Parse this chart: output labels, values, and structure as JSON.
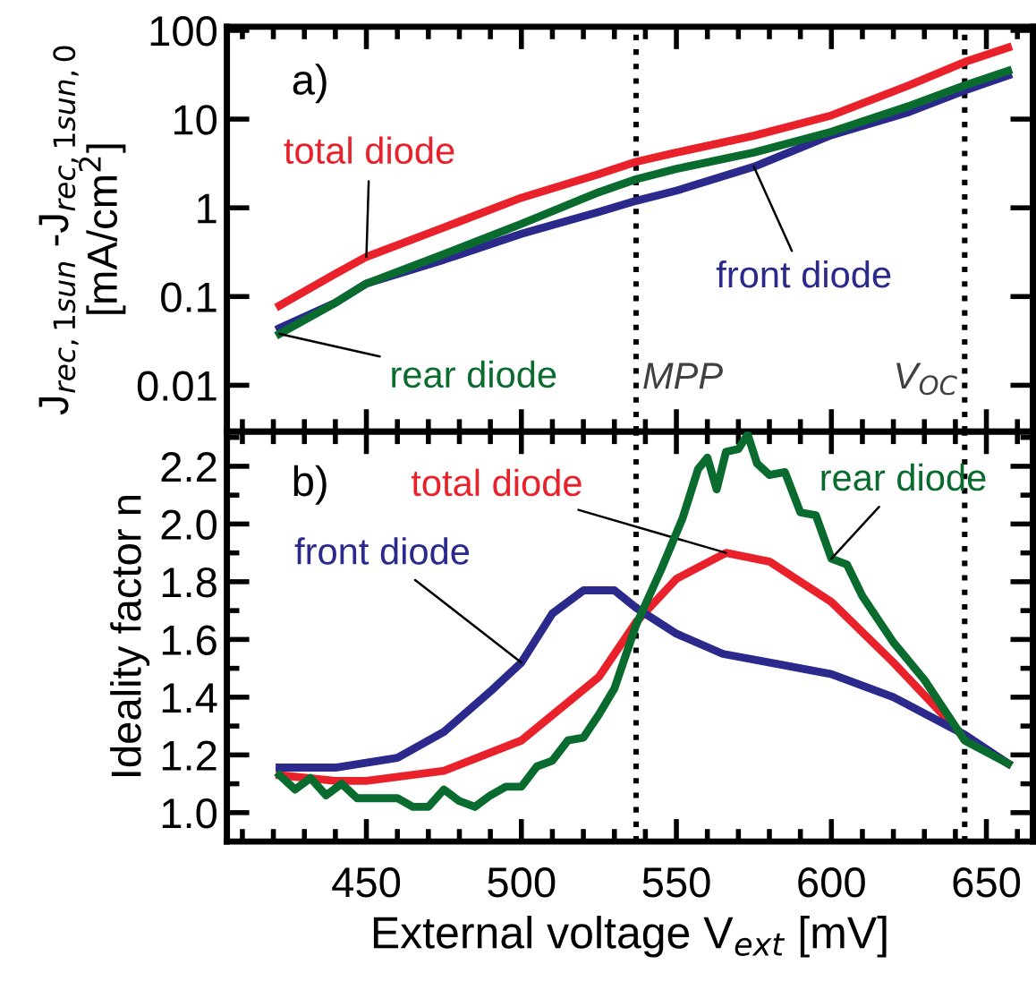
{
  "chart_data": [
    {
      "type": "line",
      "ylabel": "J$_{rec,1sun}$ -J$_{rec,1sun,0}$\n[mA/cm$^{2}$]",
      "log": "y",
      "tick_labels": "y",
      "xlim": [
        405,
        665
      ],
      "xticks": [
        450,
        500,
        550,
        600,
        650
      ],
      "ylim": [
        0.003,
        110
      ],
      "yticks": [
        0.01,
        0.1,
        1,
        10,
        100
      ],
      "series": [
        {
          "name": "total diode",
          "color": "#e8212b",
          "x": [
            422,
            440,
            450,
            475,
            500,
            525,
            537,
            550,
            575,
            600,
            625,
            643,
            657
          ],
          "values": [
            0.079,
            0.18,
            0.28,
            0.6,
            1.3,
            2.4,
            3.3,
            4.2,
            6.5,
            11,
            24,
            44,
            64
          ]
        },
        {
          "name": "front diode",
          "color": "#2b2a8c",
          "x": [
            422,
            440,
            450,
            475,
            500,
            525,
            537,
            550,
            575,
            600,
            625,
            643,
            657
          ],
          "values": [
            0.044,
            0.085,
            0.14,
            0.26,
            0.51,
            0.9,
            1.2,
            1.56,
            2.9,
            6.6,
            12,
            21,
            31
          ]
        },
        {
          "name": "rear diode",
          "color": "#0a6b2e",
          "x": [
            422,
            440,
            450,
            475,
            500,
            525,
            537,
            550,
            575,
            600,
            625,
            643,
            657
          ],
          "values": [
            0.038,
            0.085,
            0.14,
            0.3,
            0.66,
            1.5,
            2.1,
            2.75,
            4.2,
            7.2,
            14,
            24,
            35
          ]
        }
      ],
      "ref_lines": [
        {
          "axis": "x",
          "value": 537,
          "label": "MPP",
          "line_style": "dotted",
          "color": "#000000"
        },
        {
          "axis": "x",
          "value": 643,
          "label": "V$_{OC}$",
          "line_style": "dotted",
          "color": "#000000"
        }
      ],
      "annotations": [
        "a)"
      ]
    },
    {
      "type": "line",
      "xlabel": "External voltage V$_{ext}$ [mV]",
      "ylabel": "Ideality factor n",
      "xlim": [
        405,
        665
      ],
      "xticks": [
        450,
        500,
        550,
        600,
        650
      ],
      "ylim": [
        0.9,
        2.32
      ],
      "yticks": [
        {
          "value": 1.0,
          "label": "1.0"
        },
        1.2,
        1.4,
        1.6,
        1.8,
        {
          "value": 2.0,
          "label": "2.0"
        },
        2.2
      ],
      "series": [
        {
          "name": "total diode",
          "color": "#e8212b",
          "x": [
            422,
            440,
            450,
            475,
            500,
            525,
            537,
            550,
            566,
            580,
            600,
            620,
            643,
            657
          ],
          "values": [
            1.13,
            1.11,
            1.11,
            1.145,
            1.25,
            1.47,
            1.66,
            1.81,
            1.9,
            1.87,
            1.73,
            1.52,
            1.26,
            1.17
          ]
        },
        {
          "name": "front diode",
          "color": "#2b2a8c",
          "x": [
            422,
            440,
            460,
            475,
            490,
            500,
            510,
            520,
            530,
            537,
            550,
            565,
            580,
            600,
            620,
            643,
            657
          ],
          "values": [
            1.156,
            1.156,
            1.19,
            1.28,
            1.42,
            1.52,
            1.69,
            1.77,
            1.77,
            1.71,
            1.62,
            1.55,
            1.52,
            1.48,
            1.4,
            1.27,
            1.17
          ]
        },
        {
          "name": "rear diode",
          "color": "#0a6b2e",
          "x": [
            422,
            427,
            432,
            437,
            442,
            447,
            460,
            465,
            470,
            475,
            480,
            485,
            490,
            495,
            500,
            505,
            510,
            515,
            520,
            525,
            530,
            537,
            545,
            552,
            557,
            560,
            563,
            566,
            570,
            573,
            576,
            580,
            585,
            590,
            595,
            600,
            605,
            610,
            620,
            630,
            643,
            657
          ],
          "values": [
            1.13,
            1.08,
            1.12,
            1.06,
            1.1,
            1.05,
            1.05,
            1.02,
            1.02,
            1.08,
            1.04,
            1.02,
            1.06,
            1.09,
            1.09,
            1.16,
            1.18,
            1.25,
            1.26,
            1.34,
            1.43,
            1.65,
            1.84,
            2.02,
            2.19,
            2.23,
            2.12,
            2.25,
            2.26,
            2.31,
            2.21,
            2.17,
            2.18,
            2.04,
            2.03,
            1.88,
            1.86,
            1.75,
            1.59,
            1.46,
            1.25,
            1.17
          ]
        }
      ],
      "ref_lines": [
        {
          "axis": "x",
          "value": 537,
          "line_style": "dotted",
          "color": "#000000"
        },
        {
          "axis": "x",
          "value": 643,
          "line_style": "dotted",
          "color": "#000000"
        }
      ],
      "annotations": [
        "b)"
      ]
    }
  ]
}
